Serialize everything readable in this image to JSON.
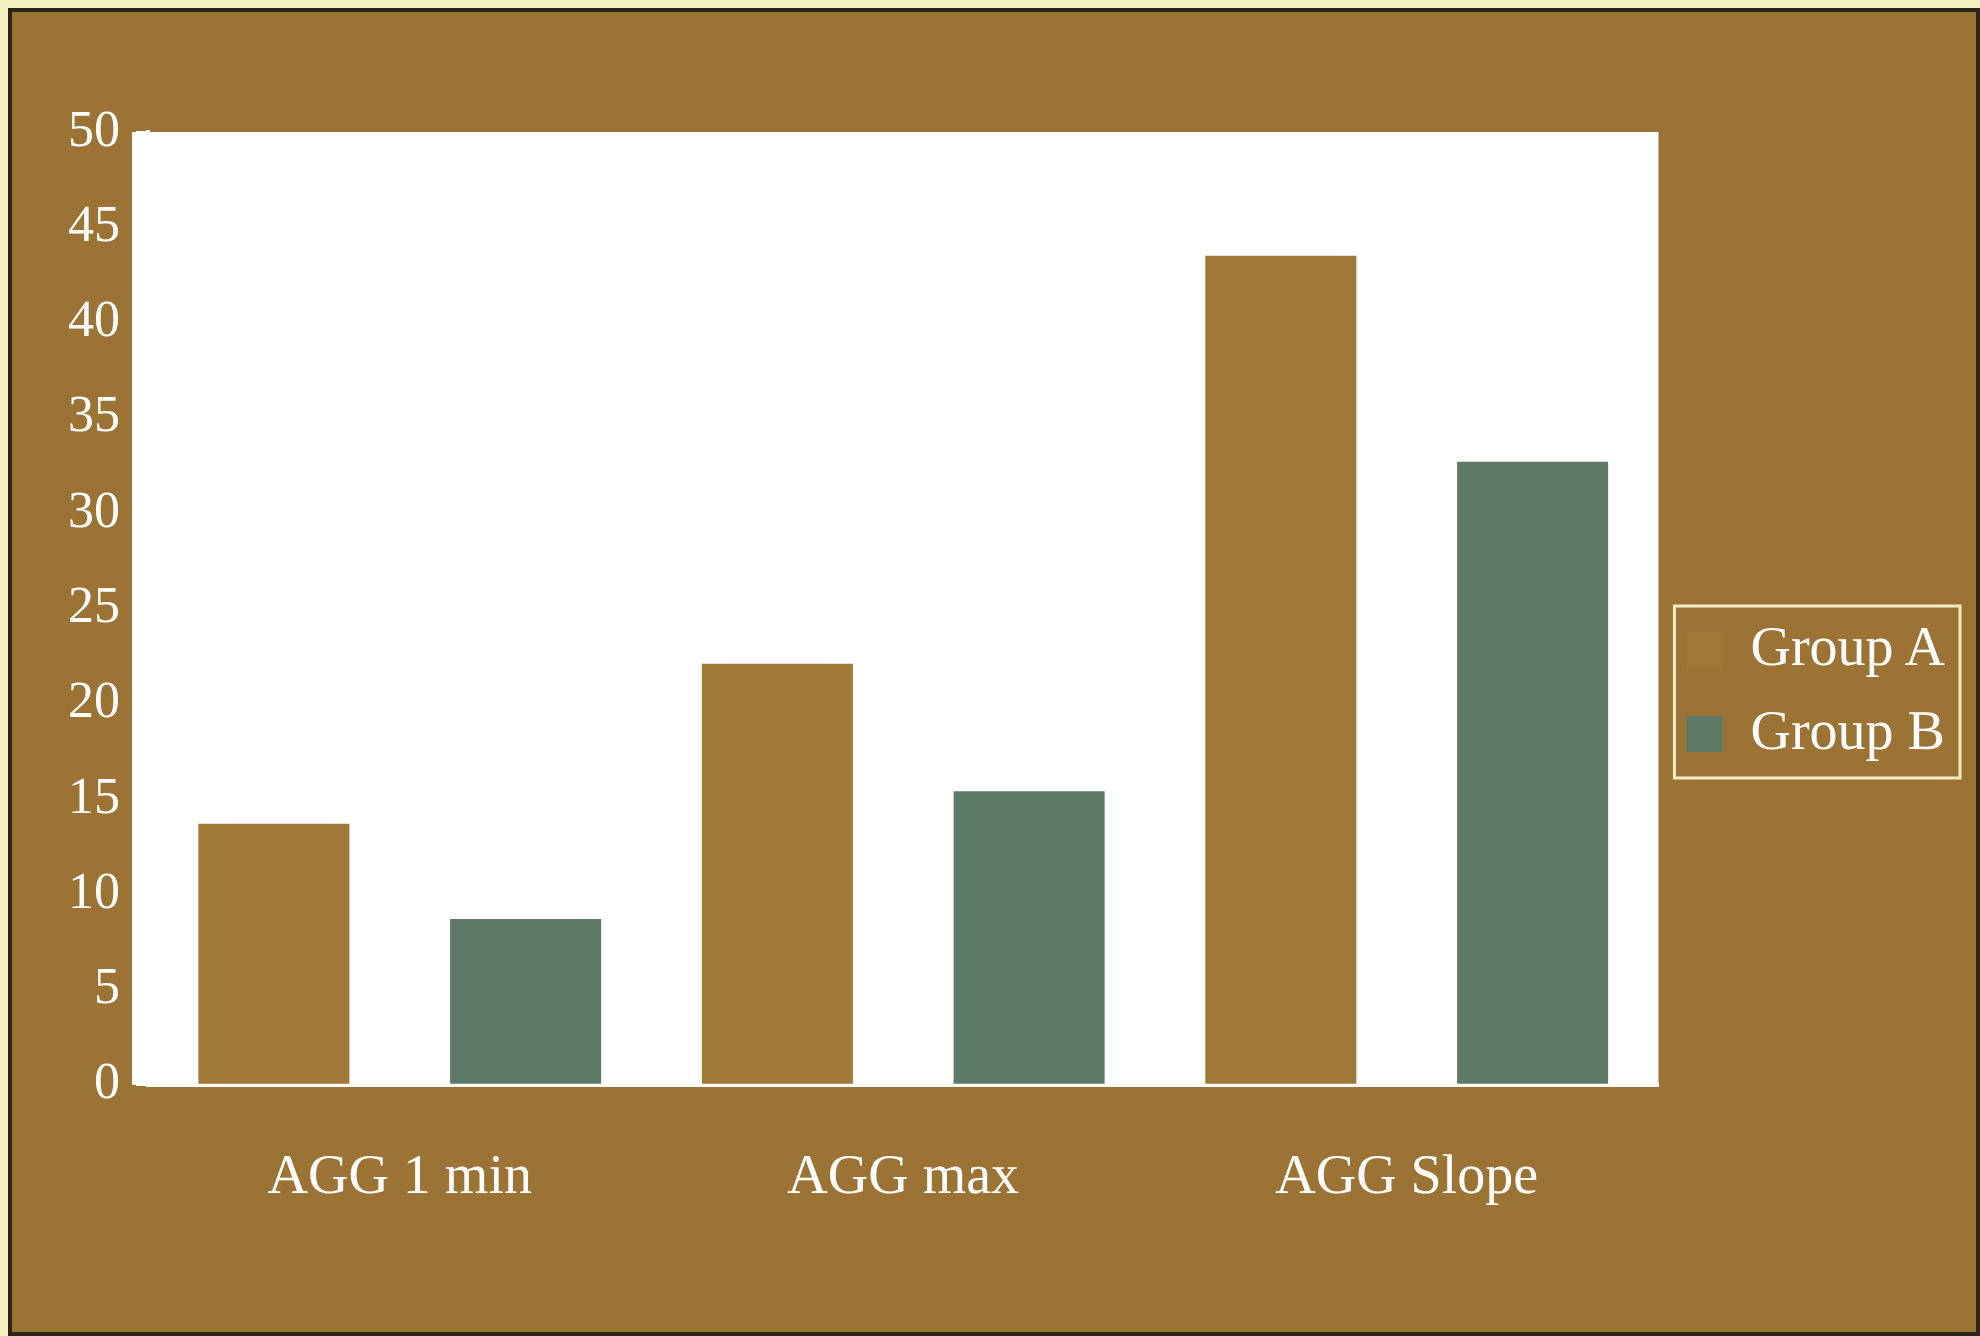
{
  "chart_data": {
    "type": "bar",
    "categories": [
      "AGG 1 min",
      "AGG max",
      "AGG Slope"
    ],
    "series": [
      {
        "name": "Group A",
        "color": "#a07838",
        "values": [
          13.7,
          22.1,
          43.5
        ]
      },
      {
        "name": "Group B",
        "color": "#5e7a66",
        "values": [
          8.7,
          15.4,
          32.7
        ]
      }
    ],
    "ylim": [
      0,
      50
    ],
    "yticks": [
      0,
      5,
      10,
      15,
      20,
      25,
      30,
      35,
      40,
      45,
      50
    ],
    "grid": false,
    "legend": "right"
  }
}
